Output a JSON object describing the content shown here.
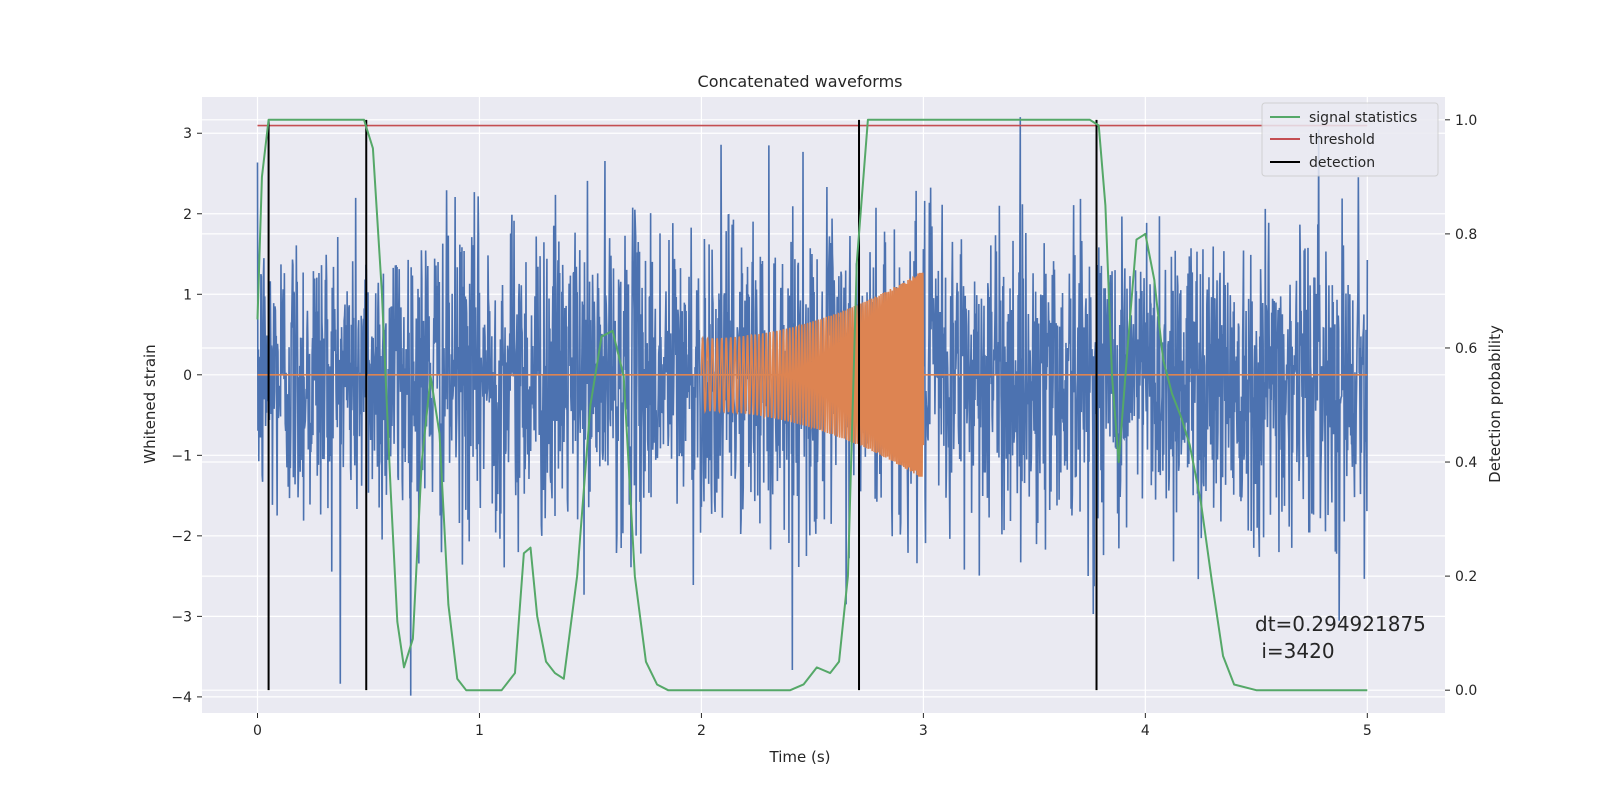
{
  "chart_data": {
    "type": "line",
    "title": "Concatenated waveforms",
    "xlabel": "Time (s)",
    "ylabel": "Whitened strain",
    "y2label": "Detection probability",
    "xlim": [
      -0.25,
      5.35
    ],
    "ylim": [
      -4.2,
      3.45
    ],
    "y2lim": [
      -0.04,
      1.04
    ],
    "x_ticks": [
      0,
      1,
      2,
      3,
      4,
      5
    ],
    "y_ticks": [
      -4,
      -3,
      -2,
      -1,
      0,
      1,
      2,
      3
    ],
    "y2_ticks": [
      0.0,
      0.2,
      0.4,
      0.6,
      0.8,
      1.0
    ],
    "x_tick_labels": [
      "0",
      "1",
      "2",
      "3",
      "4",
      "5"
    ],
    "y_tick_labels": [
      "−4",
      "−3",
      "−2",
      "−1",
      "0",
      "1",
      "2",
      "3"
    ],
    "y2_tick_labels": [
      "0.0",
      "0.2",
      "0.4",
      "0.6",
      "0.8",
      "1.0"
    ],
    "grid": true,
    "legend_position": "top-right",
    "colors": {
      "noise": "#4c72b0",
      "injection": "#dd8452",
      "signal_statistics": "#55a868",
      "threshold": "#c44e52",
      "detection": "#000000",
      "background": "#eaeaf2",
      "grid": "#ffffff"
    },
    "series": [
      {
        "name": "signal statistics",
        "axis": "right",
        "x": [
          0.0,
          0.02,
          0.05,
          0.1,
          0.2,
          0.3,
          0.4,
          0.48,
          0.52,
          0.56,
          0.6,
          0.63,
          0.66,
          0.7,
          0.74,
          0.78,
          0.82,
          0.86,
          0.9,
          0.94,
          0.98,
          1.02,
          1.1,
          1.16,
          1.2,
          1.23,
          1.26,
          1.3,
          1.34,
          1.38,
          1.44,
          1.5,
          1.55,
          1.6,
          1.65,
          1.7,
          1.75,
          1.8,
          1.85,
          1.9,
          2.0,
          2.2,
          2.4,
          2.46,
          2.52,
          2.58,
          2.62,
          2.66,
          2.7,
          2.75,
          2.8,
          3.0,
          3.3,
          3.6,
          3.75,
          3.79,
          3.82,
          3.85,
          3.88,
          3.92,
          3.96,
          4.0,
          4.04,
          4.08,
          4.12,
          4.16,
          4.2,
          4.25,
          4.3,
          4.35,
          4.4,
          4.5,
          4.6,
          5.0
        ],
        "values": [
          0.65,
          0.9,
          1.0,
          1.0,
          1.0,
          1.0,
          1.0,
          1.0,
          0.95,
          0.7,
          0.35,
          0.12,
          0.04,
          0.09,
          0.4,
          0.55,
          0.45,
          0.15,
          0.02,
          0.0,
          0.0,
          0.0,
          0.0,
          0.03,
          0.24,
          0.25,
          0.13,
          0.05,
          0.03,
          0.02,
          0.2,
          0.5,
          0.62,
          0.63,
          0.55,
          0.2,
          0.05,
          0.01,
          0.0,
          0.0,
          0.0,
          0.0,
          0.0,
          0.01,
          0.04,
          0.03,
          0.05,
          0.2,
          0.75,
          1.0,
          1.0,
          1.0,
          1.0,
          1.0,
          1.0,
          0.99,
          0.85,
          0.55,
          0.4,
          0.6,
          0.79,
          0.8,
          0.72,
          0.58,
          0.52,
          0.48,
          0.43,
          0.33,
          0.19,
          0.06,
          0.01,
          0.0,
          0.0,
          0.0
        ]
      },
      {
        "name": "threshold",
        "axis": "right",
        "x": [
          0.0,
          5.0
        ],
        "values": [
          0.99,
          0.99
        ]
      },
      {
        "name": "detection",
        "axis": "right",
        "x": [
          0.05,
          0.49,
          2.71,
          3.78
        ],
        "values": [
          1.0,
          1.0,
          1.0,
          1.0
        ]
      },
      {
        "name": "",
        "axis": "left",
        "kind": "noise",
        "x_range": [
          0.0,
          5.0
        ],
        "amplitude_std": 0.95
      },
      {
        "name": "",
        "axis": "left",
        "kind": "chirp",
        "x_range": [
          2.0,
          3.0
        ],
        "amplitude_start": 0.45,
        "amplitude_end": 1.3
      }
    ],
    "annotations": [
      "dt=0.294921875",
      " i=3420"
    ]
  }
}
